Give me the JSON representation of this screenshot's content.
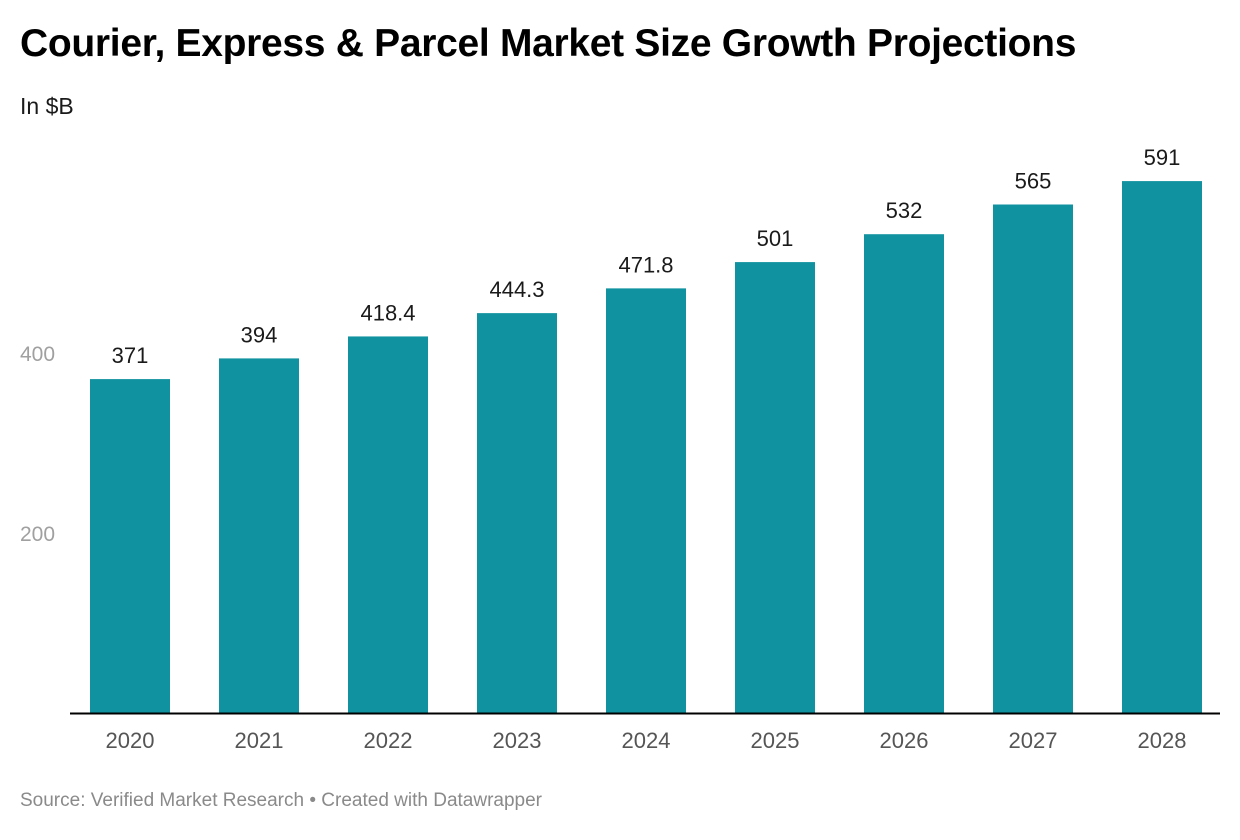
{
  "chart": {
    "title": "Courier, Express & Parcel Market Size Growth Projections",
    "subtitle": "In $B"
  },
  "footer": {
    "source": "Source: Verified Market Research",
    "separator": "•",
    "credit": "Created with Datawrapper"
  },
  "colors": {
    "bar": "#1092a0",
    "axis_line": "#000000",
    "y_tick_text": "#a0a0a0",
    "x_tick_text": "#555555",
    "value_label": "#1a1a1a"
  },
  "chart_data": {
    "type": "bar",
    "title": "Courier, Express & Parcel Market Size Growth Projections",
    "subtitle": "In $B",
    "xlabel": "",
    "ylabel": "",
    "categories": [
      "2020",
      "2021",
      "2022",
      "2023",
      "2024",
      "2025",
      "2026",
      "2027",
      "2028"
    ],
    "values": [
      371,
      394,
      418.4,
      444.3,
      471.8,
      501,
      532,
      565,
      591
    ],
    "value_labels": [
      "371",
      "394",
      "418.4",
      "444.3",
      "471.8",
      "501",
      "532",
      "565",
      "591"
    ],
    "y_ticks": [
      200,
      400
    ],
    "ylim": [
      0,
      590
    ],
    "grid": false,
    "legend": "none"
  }
}
